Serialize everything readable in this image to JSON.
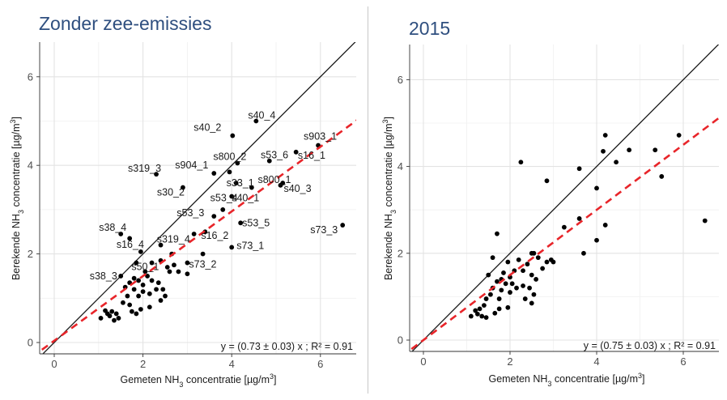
{
  "chart_data": [
    {
      "type": "scatter",
      "title": "Zonder zee-emissies",
      "xlabel": "Gemeten NH3 concentratie [µg/m3]",
      "ylabel": "Berekende NH3 concentratie [µg/m3]",
      "xlim": [
        -0.3,
        6.8
      ],
      "ylim": [
        -0.3,
        6.8
      ],
      "xticks": [
        0,
        2,
        4,
        6
      ],
      "yticks": [
        0,
        2,
        4,
        6
      ],
      "grid": true,
      "equation": "y = (0.73 ± 0.03) x ; R² = 0.91",
      "reference_line": {
        "slope": 1,
        "intercept": 0
      },
      "fit_line": {
        "slope": 0.73,
        "intercept": 0.04,
        "color": "#e8252a"
      },
      "labels": [
        {
          "text": "s40_4",
          "x": 4.55,
          "y": 5.0
        },
        {
          "text": "s40_2",
          "x": 4.02,
          "y": 4.65
        },
        {
          "text": "s903_1",
          "x": 5.95,
          "y": 4.45
        },
        {
          "text": "s800_2",
          "x": 4.13,
          "y": 4.05
        },
        {
          "text": "s53_6",
          "x": 4.8,
          "y": 4.1
        },
        {
          "text": "s16_1",
          "x": 5.4,
          "y": 4.3
        },
        {
          "text": "s319_3",
          "x": 2.3,
          "y": 3.8
        },
        {
          "text": "s904_1",
          "x": 3.6,
          "y": 3.82
        },
        {
          "text": "s800_1",
          "x": 5.1,
          "y": 3.6
        },
        {
          "text": "s33_1",
          "x": 4.1,
          "y": 3.6
        },
        {
          "text": "s30_2",
          "x": 2.9,
          "y": 3.5
        },
        {
          "text": "s40_3",
          "x": 5.1,
          "y": 3.55
        },
        {
          "text": "s40_1",
          "x": 4.0,
          "y": 3.3
        },
        {
          "text": "s53_4",
          "x": 4.1,
          "y": 3.15
        },
        {
          "text": "s53_3",
          "x": 3.6,
          "y": 2.85
        },
        {
          "text": "s53_5",
          "x": 4.2,
          "y": 2.7
        },
        {
          "text": "s38_4",
          "x": 1.5,
          "y": 2.45
        },
        {
          "text": "s16_2",
          "x": 3.4,
          "y": 2.45
        },
        {
          "text": "s73_3",
          "x": 6.5,
          "y": 2.65
        },
        {
          "text": "s16_4",
          "x": 1.95,
          "y": 2.1
        },
        {
          "text": "s319_4",
          "x": 2.35,
          "y": 2.15
        },
        {
          "text": "s73_1",
          "x": 4.0,
          "y": 2.15
        },
        {
          "text": "s38_3",
          "x": 1.4,
          "y": 1.5
        },
        {
          "text": "s50_1",
          "x": 2.05,
          "y": 1.6
        },
        {
          "text": "s73_2",
          "x": 3.0,
          "y": 1.8
        }
      ],
      "points": [
        [
          4.55,
          5.0
        ],
        [
          4.02,
          4.67
        ],
        [
          5.95,
          4.45
        ],
        [
          5.45,
          4.3
        ],
        [
          4.13,
          4.05
        ],
        [
          4.85,
          4.1
        ],
        [
          5.1,
          3.55
        ],
        [
          2.3,
          3.8
        ],
        [
          3.6,
          3.82
        ],
        [
          3.95,
          3.85
        ],
        [
          4.45,
          3.5
        ],
        [
          4.1,
          3.6
        ],
        [
          2.9,
          3.5
        ],
        [
          5.15,
          3.6
        ],
        [
          4.0,
          3.3
        ],
        [
          3.8,
          3.0
        ],
        [
          3.6,
          2.85
        ],
        [
          4.2,
          2.7
        ],
        [
          1.5,
          2.45
        ],
        [
          1.7,
          2.35
        ],
        [
          3.4,
          2.5
        ],
        [
          6.5,
          2.65
        ],
        [
          3.15,
          2.45
        ],
        [
          2.4,
          2.2
        ],
        [
          1.95,
          2.05
        ],
        [
          4.0,
          2.15
        ],
        [
          2.65,
          2.0
        ],
        [
          2.4,
          1.85
        ],
        [
          2.2,
          1.8
        ],
        [
          1.85,
          1.8
        ],
        [
          3.35,
          2.0
        ],
        [
          2.7,
          1.75
        ],
        [
          1.5,
          1.5
        ],
        [
          2.05,
          1.6
        ],
        [
          3.0,
          1.8
        ],
        [
          2.1,
          1.5
        ],
        [
          2.2,
          1.4
        ],
        [
          1.8,
          1.45
        ],
        [
          1.9,
          1.4
        ],
        [
          2.0,
          1.3
        ],
        [
          2.55,
          1.7
        ],
        [
          2.8,
          1.6
        ],
        [
          3.0,
          1.55
        ],
        [
          2.35,
          1.35
        ],
        [
          2.45,
          1.2
        ],
        [
          1.7,
          1.35
        ],
        [
          1.6,
          1.25
        ],
        [
          1.8,
          1.2
        ],
        [
          2.0,
          1.15
        ],
        [
          1.9,
          1.05
        ],
        [
          2.15,
          1.1
        ],
        [
          2.3,
          1.2
        ],
        [
          2.5,
          1.05
        ],
        [
          2.4,
          0.95
        ],
        [
          1.65,
          1.05
        ],
        [
          1.55,
          0.9
        ],
        [
          1.95,
          0.75
        ],
        [
          2.15,
          0.8
        ],
        [
          1.75,
          0.7
        ],
        [
          1.4,
          0.65
        ],
        [
          1.3,
          0.7
        ],
        [
          1.2,
          0.65
        ],
        [
          1.15,
          0.72
        ],
        [
          1.25,
          0.6
        ],
        [
          1.05,
          0.55
        ],
        [
          1.45,
          0.55
        ],
        [
          1.35,
          0.5
        ],
        [
          1.7,
          0.85
        ],
        [
          2.6,
          1.6
        ],
        [
          1.85,
          0.65
        ]
      ]
    },
    {
      "type": "scatter",
      "title": "2015",
      "xlabel": "Gemeten NH3 concentratie [µg/m3]",
      "ylabel": "Berekende NH3 concentratie [µg/m3]",
      "xlim": [
        -0.3,
        6.8
      ],
      "ylim": [
        -0.3,
        6.8
      ],
      "xticks": [
        0,
        2,
        4,
        6
      ],
      "yticks": [
        0,
        2,
        4,
        6
      ],
      "grid": true,
      "equation": "y = (0.75 ± 0.03) x ; R² = 0.91",
      "reference_line": {
        "slope": 1,
        "intercept": 0
      },
      "fit_line": {
        "slope": 0.75,
        "intercept": 0.0,
        "color": "#e8252a"
      },
      "points": [
        [
          4.2,
          4.72
        ],
        [
          5.9,
          4.72
        ],
        [
          4.15,
          4.35
        ],
        [
          4.75,
          4.38
        ],
        [
          5.35,
          4.38
        ],
        [
          2.25,
          4.1
        ],
        [
          4.45,
          4.1
        ],
        [
          3.6,
          3.95
        ],
        [
          2.85,
          3.67
        ],
        [
          5.5,
          3.77
        ],
        [
          4.0,
          3.5
        ],
        [
          3.6,
          2.8
        ],
        [
          4.2,
          2.65
        ],
        [
          3.25,
          2.6
        ],
        [
          6.5,
          2.75
        ],
        [
          1.7,
          2.45
        ],
        [
          4.0,
          2.3
        ],
        [
          3.7,
          2.0
        ],
        [
          2.5,
          2.0
        ],
        [
          2.55,
          2.0
        ],
        [
          2.65,
          1.9
        ],
        [
          1.6,
          1.9
        ],
        [
          2.95,
          1.85
        ],
        [
          2.85,
          1.8
        ],
        [
          3.0,
          1.8
        ],
        [
          2.2,
          1.85
        ],
        [
          1.95,
          1.8
        ],
        [
          2.4,
          1.75
        ],
        [
          2.1,
          1.6
        ],
        [
          2.3,
          1.6
        ],
        [
          1.85,
          1.55
        ],
        [
          1.5,
          1.5
        ],
        [
          2.75,
          1.65
        ],
        [
          2.0,
          1.45
        ],
        [
          2.5,
          1.5
        ],
        [
          1.7,
          1.35
        ],
        [
          1.8,
          1.4
        ],
        [
          1.9,
          1.3
        ],
        [
          2.05,
          1.3
        ],
        [
          2.15,
          1.2
        ],
        [
          2.3,
          1.25
        ],
        [
          2.45,
          1.2
        ],
        [
          1.6,
          1.2
        ],
        [
          1.8,
          1.15
        ],
        [
          1.55,
          1.05
        ],
        [
          2.0,
          1.1
        ],
        [
          2.55,
          1.05
        ],
        [
          2.35,
          0.95
        ],
        [
          1.75,
          0.95
        ],
        [
          1.45,
          0.95
        ],
        [
          2.5,
          0.85
        ],
        [
          1.95,
          0.75
        ],
        [
          1.75,
          0.72
        ],
        [
          1.4,
          0.8
        ],
        [
          1.3,
          0.72
        ],
        [
          1.2,
          0.68
        ],
        [
          1.35,
          0.55
        ],
        [
          1.25,
          0.6
        ],
        [
          1.1,
          0.55
        ],
        [
          1.45,
          0.52
        ],
        [
          1.65,
          0.62
        ],
        [
          2.6,
          1.4
        ]
      ]
    }
  ]
}
